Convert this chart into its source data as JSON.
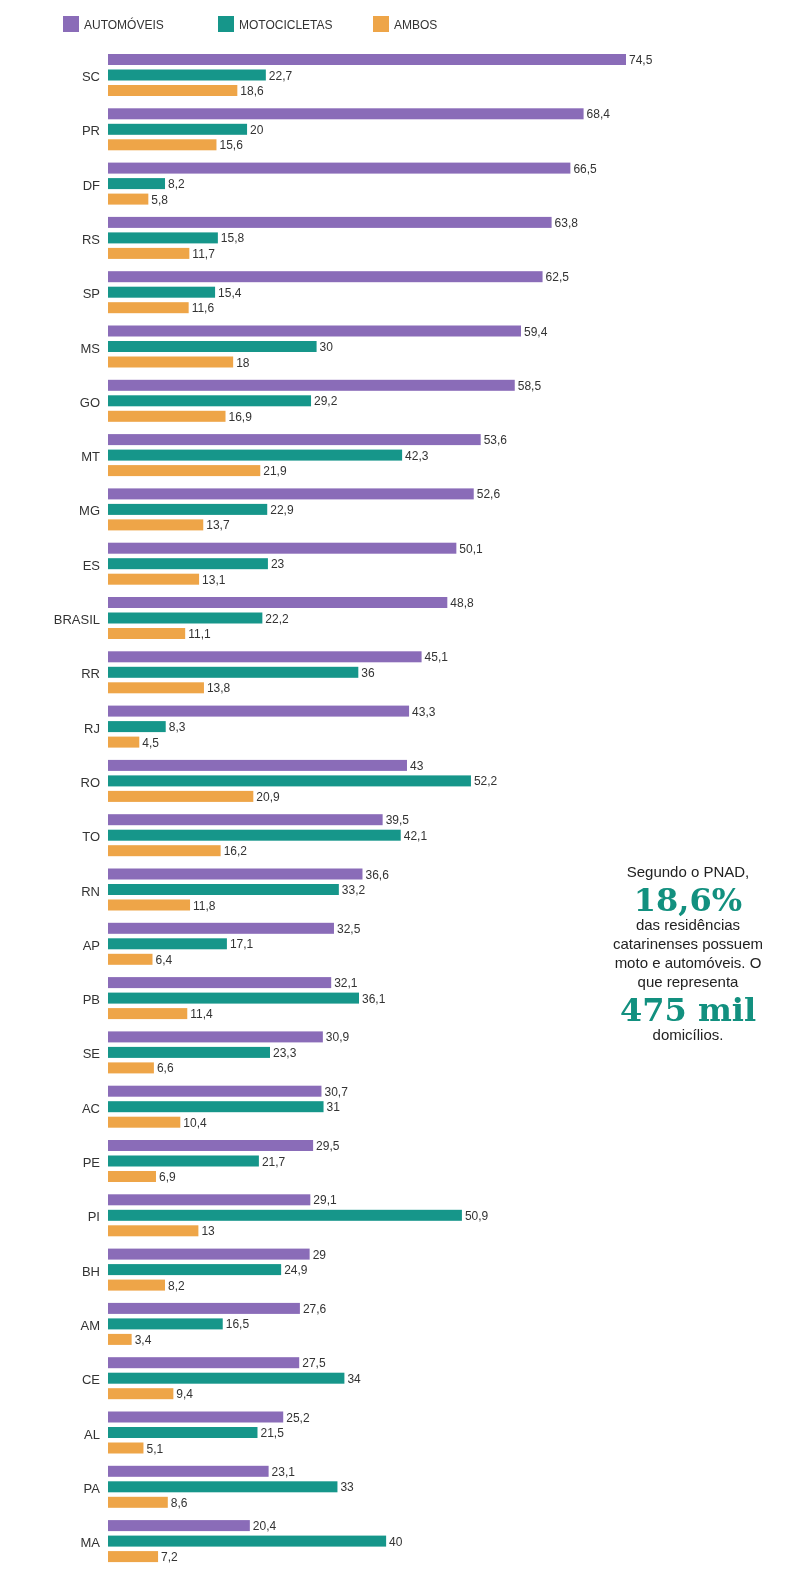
{
  "chart_data": {
    "type": "bar",
    "orientation": "horizontal",
    "legend": "top left",
    "categories": [
      "SC",
      "PR",
      "DF",
      "RS",
      "SP",
      "MS",
      "GO",
      "MT",
      "MG",
      "ES",
      "BRASIL",
      "RR",
      "RJ",
      "RO",
      "TO",
      "RN",
      "AP",
      "PB",
      "SE",
      "AC",
      "PE",
      "PI",
      "BH",
      "AM",
      "CE",
      "AL",
      "PA",
      "MA"
    ],
    "series": [
      {
        "name": "AUTOMÓVEIS",
        "color": "#8a6cb8",
        "values": [
          74.5,
          68.4,
          66.5,
          63.8,
          62.5,
          59.4,
          58.5,
          53.6,
          52.6,
          50.1,
          48.8,
          45.1,
          43.3,
          43,
          39.5,
          36.6,
          32.5,
          32.1,
          30.9,
          30.7,
          29.5,
          29.1,
          29,
          27.6,
          27.5,
          25.2,
          23.1,
          20.4
        ],
        "value_labels": [
          "74,5",
          "68,4",
          "66,5",
          "63,8",
          "62,5",
          "59,4",
          "58,5",
          "53,6",
          "52,6",
          "50,1",
          "48,8",
          "45,1",
          "43,3",
          "43",
          "39,5",
          "36,6",
          "32,5",
          "32,1",
          "30,9",
          "30,7",
          "29,5",
          "29,1",
          "29",
          "27,6",
          "27,5",
          "25,2",
          "23,1",
          "20,4"
        ]
      },
      {
        "name": "MOTOCICLETAS",
        "color": "#16968a",
        "values": [
          22.7,
          20,
          8.2,
          15.8,
          15.4,
          30,
          29.2,
          42.3,
          22.9,
          23,
          22.2,
          36,
          8.3,
          52.2,
          42.1,
          33.2,
          17.1,
          36.1,
          23.3,
          31,
          21.7,
          50.9,
          24.9,
          16.5,
          34,
          21.5,
          33,
          40
        ],
        "value_labels": [
          "22,7",
          "20",
          "8,2",
          "15,8",
          "15,4",
          "30",
          "29,2",
          "42,3",
          "22,9",
          "23",
          "22,2",
          "36",
          "8,3",
          "52,2",
          "42,1",
          "33,2",
          "17,1",
          "36,1",
          "23,3",
          "31",
          "21,7",
          "50,9",
          "24,9",
          "16,5",
          "34",
          "21,5",
          "33",
          "40"
        ]
      },
      {
        "name": "AMBOS",
        "color": "#eea548",
        "values": [
          18.6,
          15.6,
          5.8,
          11.7,
          11.6,
          18,
          16.9,
          21.9,
          13.7,
          13.1,
          11.1,
          13.8,
          4.5,
          20.9,
          16.2,
          11.8,
          6.4,
          11.4,
          6.6,
          10.4,
          6.9,
          13,
          8.2,
          3.4,
          9.4,
          5.1,
          8.6,
          7.2
        ],
        "value_labels": [
          "18,6",
          "15,6",
          "5,8",
          "11,7",
          "11,6",
          "18",
          "16,9",
          "21,9",
          "13,7",
          "13,1",
          "11,1",
          "13,8",
          "4,5",
          "20,9",
          "16,2",
          "11,8",
          "6,4",
          "11,4",
          "6,6",
          "10,4",
          "6,9",
          "13",
          "8,2",
          "3,4",
          "9,4",
          "5,1",
          "8,6",
          "7,2"
        ]
      }
    ],
    "annotations": [
      "Segundo o PNAD,",
      "18,6%",
      "das residências catarinenses possuem moto e automóveis. O que representa",
      "475 mil",
      "domicílios."
    ]
  }
}
